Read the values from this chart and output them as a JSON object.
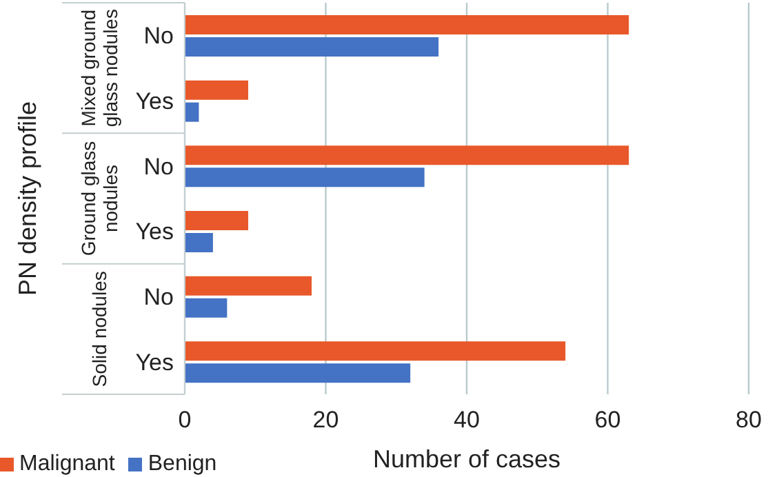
{
  "chart_data": {
    "type": "bar",
    "orientation": "horizontal",
    "xlabel": "Number of cases",
    "ylabel": "PN density profile",
    "categories": [
      "No",
      "Yes",
      "No",
      "Yes",
      "No",
      "Yes"
    ],
    "annotations": [
      "Mixed ground glass nodules",
      "Ground glass nodules",
      "Solid nodules"
    ],
    "series": [
      {
        "name": "Malignant",
        "color": "#e8582a",
        "values": [
          63,
          9,
          63,
          9,
          18,
          54
        ]
      },
      {
        "name": "Benign",
        "color": "#4472c4",
        "values": [
          36,
          2,
          34,
          4,
          6,
          32
        ]
      }
    ],
    "xlim": [
      0,
      80
    ],
    "xticks": [
      0,
      20,
      40,
      60,
      80
    ],
    "grid": "x",
    "legend": "bottom left"
  }
}
